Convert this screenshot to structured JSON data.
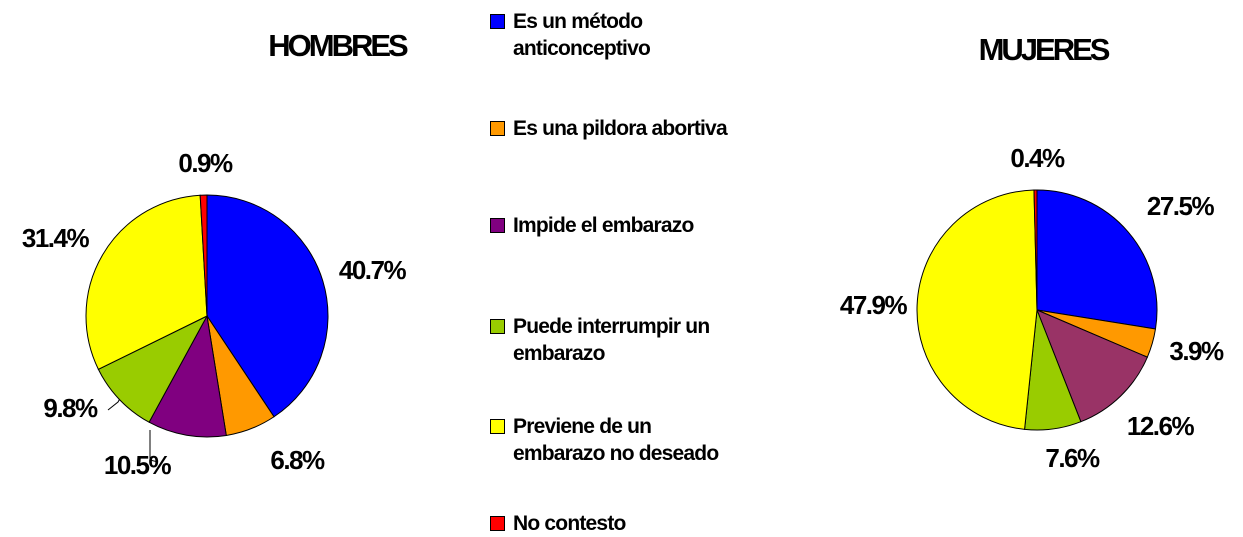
{
  "legend": {
    "labels": [
      "Es un método anticonceptivo",
      "Es una pildora abortiva",
      "Impide el embarazo",
      "Puede interrumpir un embarazo",
      "Previene de un embarazo no deseado",
      "No contesto"
    ],
    "colors": [
      "#0000ff",
      "#ff9900",
      "#800080",
      "#99cc00",
      "#ffff00",
      "#ff0000"
    ]
  },
  "chart_data": [
    {
      "type": "pie",
      "title": "HOMBRES",
      "values": [
        40.7,
        6.8,
        10.5,
        9.8,
        31.4,
        0.9
      ],
      "value_labels": [
        "40.7%",
        "6.8%",
        "10.5%",
        "9.8%",
        "31.4%",
        "0.9%"
      ],
      "colors": [
        "#0000ff",
        "#ff9900",
        "#800080",
        "#99cc00",
        "#ffff00",
        "#ff0000"
      ]
    },
    {
      "type": "pie",
      "title": "MUJERES",
      "values": [
        27.5,
        3.9,
        12.6,
        7.6,
        47.9,
        0.4
      ],
      "value_labels": [
        "27.5%",
        "3.9%",
        "12.6%",
        "7.6%",
        "47.9%",
        "0.4%"
      ],
      "colors": [
        "#0000ff",
        "#ff9900",
        "#993366",
        "#99cc00",
        "#ffff00",
        "#ff0000"
      ]
    }
  ]
}
